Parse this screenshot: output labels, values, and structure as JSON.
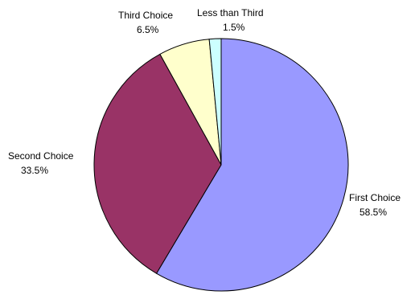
{
  "chart_data": {
    "type": "pie",
    "slices": [
      {
        "label": "First Choice",
        "value": 58.5,
        "display": "58.5%",
        "color": "#9999ff"
      },
      {
        "label": "Second Choice",
        "value": 33.5,
        "display": "33.5%",
        "color": "#993366"
      },
      {
        "label": "Third Choice",
        "value": 6.5,
        "display": "6.5%",
        "color": "#ffffcc"
      },
      {
        "label": "Less than Third",
        "value": 1.5,
        "display": "1.5%",
        "color": "#ccffff"
      }
    ],
    "start_angle": "12 o'clock",
    "direction": "clockwise"
  }
}
